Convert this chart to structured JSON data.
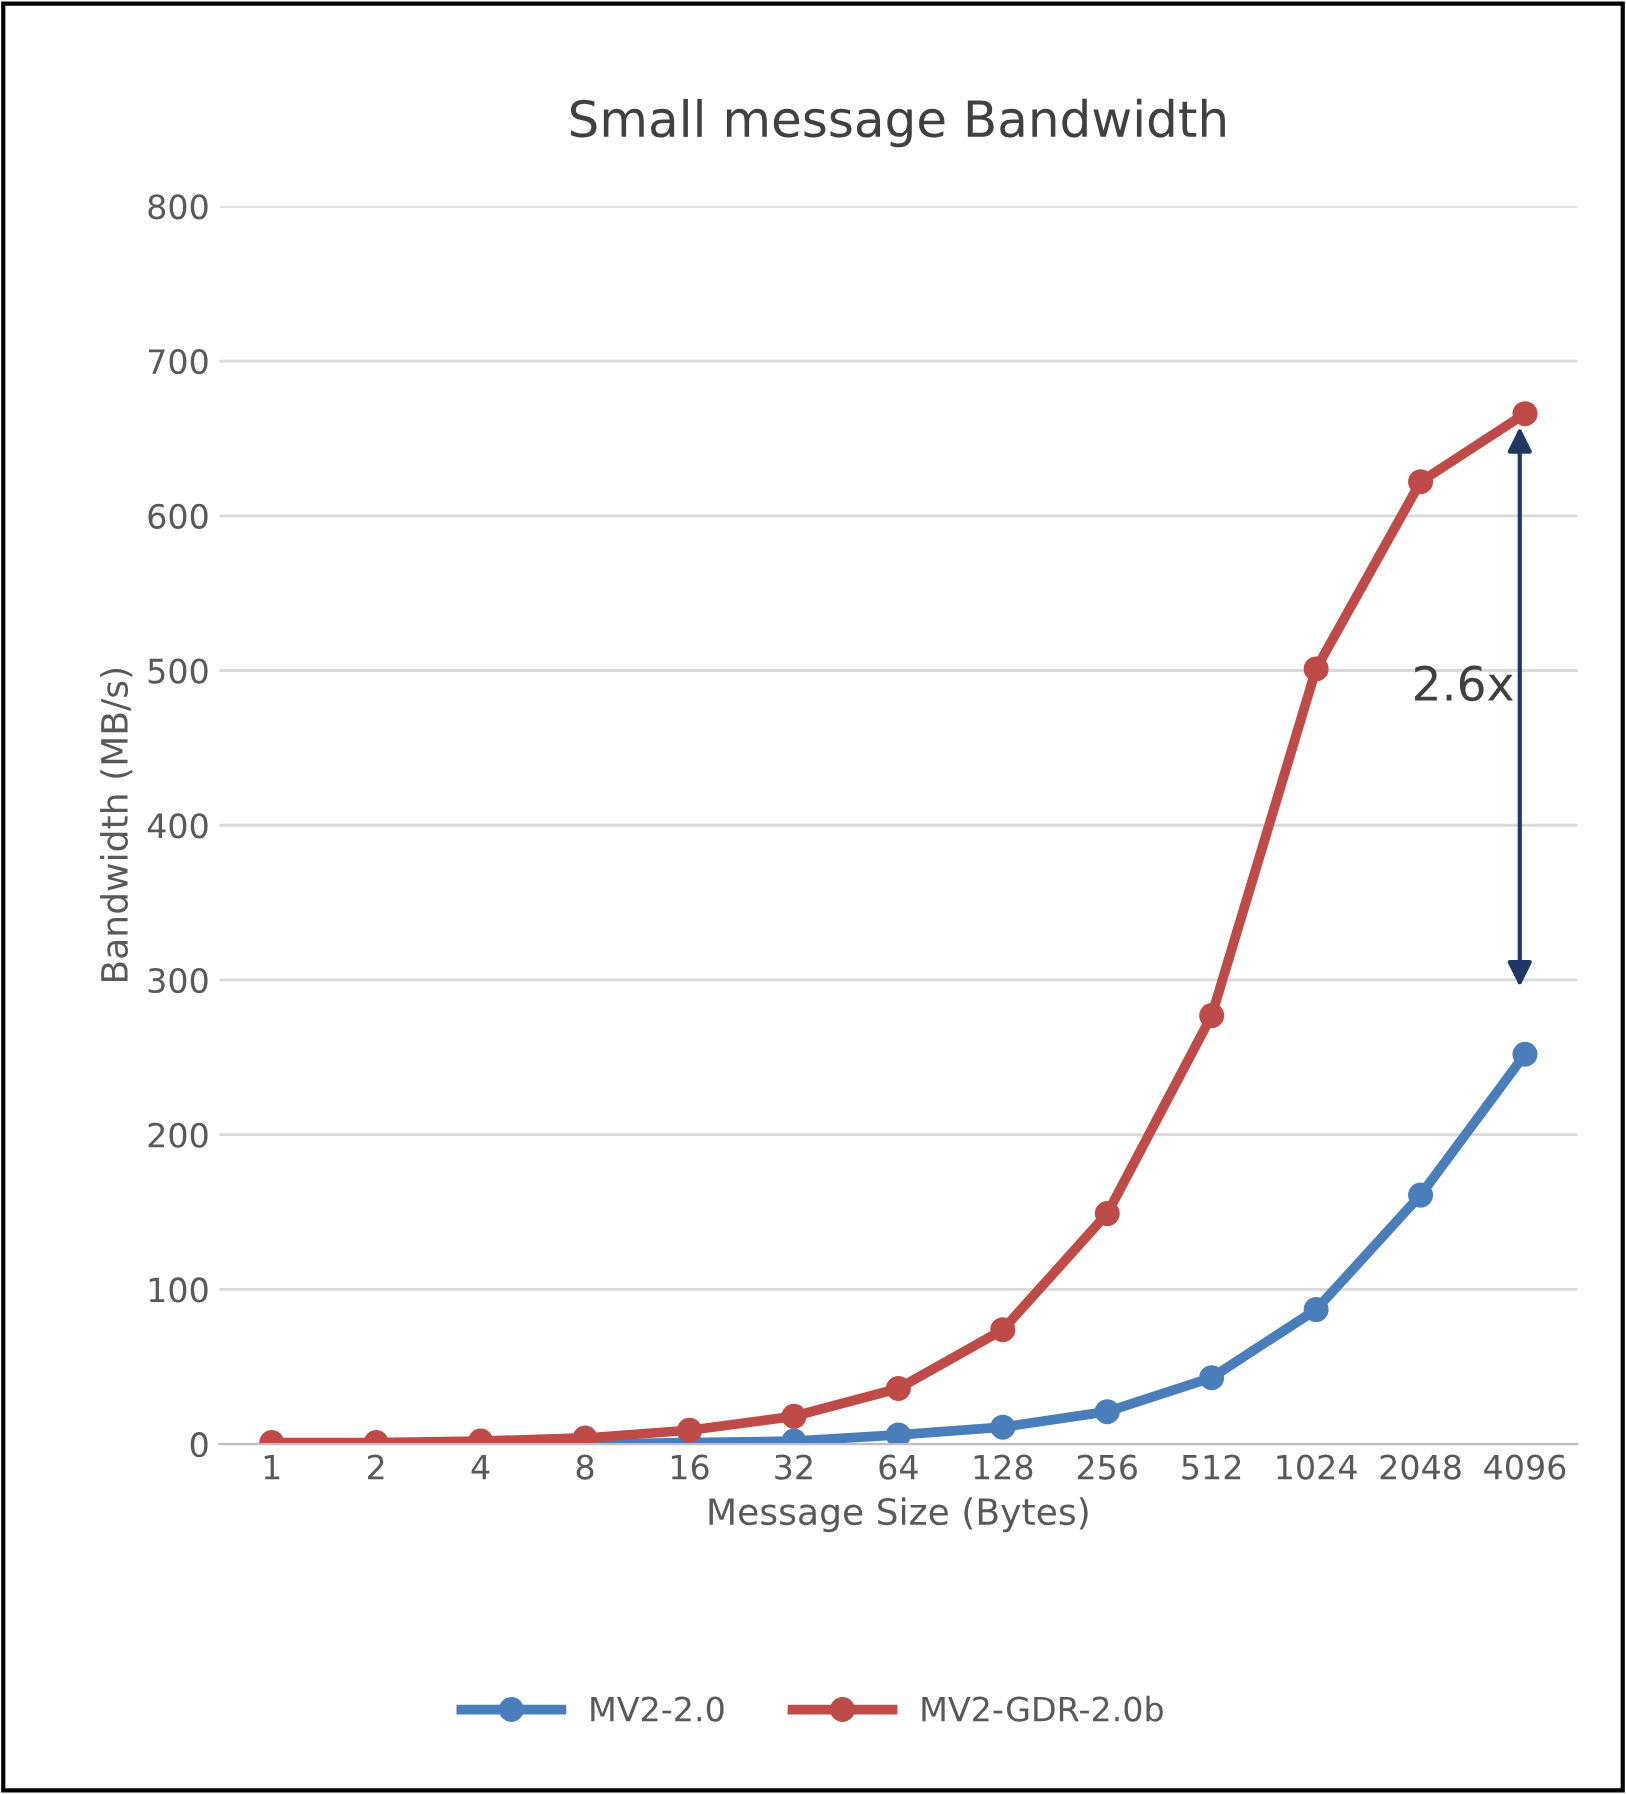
{
  "chart_data": {
    "type": "line",
    "title": "Small message Bandwidth",
    "xlabel": "Message Size (Bytes)",
    "ylabel": "Bandwidth (MB/s)",
    "categories": [
      "1",
      "2",
      "4",
      "8",
      "16",
      "32",
      "64",
      "128",
      "256",
      "512",
      "1024",
      "2048",
      "4096"
    ],
    "series": [
      {
        "name": "MV2-2.0",
        "color": "#4a7ebb",
        "values": [
          null,
          null,
          0,
          0,
          1,
          2,
          6,
          11,
          21,
          43,
          87,
          161,
          252
        ]
      },
      {
        "name": "MV2-GDR-2.0b",
        "color": "#be4b48",
        "values": [
          1,
          1,
          2,
          4,
          9,
          18,
          36,
          74,
          149,
          277,
          501,
          622,
          666
        ]
      }
    ],
    "ylim": [
      0,
      800
    ],
    "yticks": [
      0,
      100,
      200,
      300,
      400,
      500,
      600,
      700,
      800
    ],
    "grid": "y",
    "legend": "bottom",
    "marker": "circle",
    "line_style": "solid",
    "annotations": [
      "2.6x"
    ]
  }
}
